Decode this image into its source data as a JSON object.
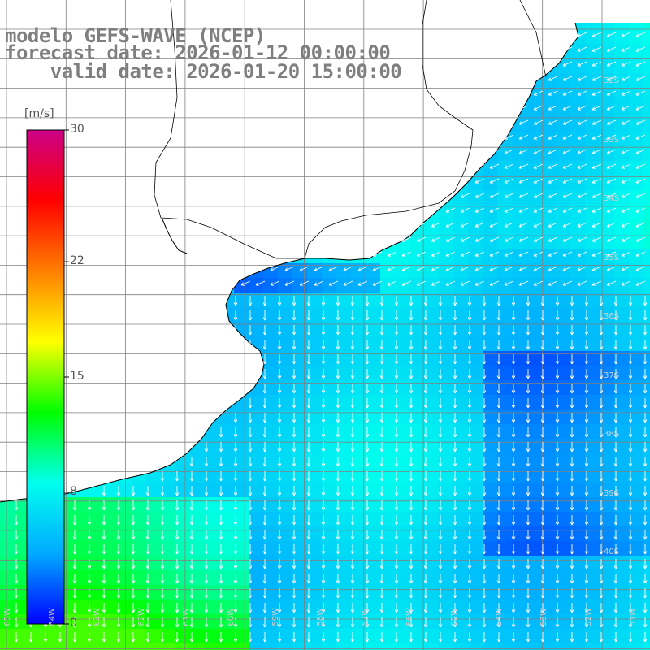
{
  "titles": {
    "model": "modelo GEFS-WAVE (NCEP)",
    "forecast": "forecast date: 2026-01-12 00:00:00",
    "valid": "    valid date: 2026-01-20 15:00:00"
  },
  "colorbar": {
    "unit": "[m/s]",
    "ticks": [
      {
        "value": 30,
        "label": "30"
      },
      {
        "value": 22,
        "label": "22"
      },
      {
        "value": 15,
        "label": "15"
      },
      {
        "value": 8,
        "label": "8"
      },
      {
        "value": 0,
        "label": "0"
      }
    ],
    "colors": [
      "#0000ff",
      "#00aaff",
      "#00ffee",
      "#00ff00",
      "#ffff00",
      "#ff7f00",
      "#ff0000",
      "#cc0088"
    ]
  },
  "map": {
    "lat_labels": [
      "32S",
      "33S",
      "34S",
      "35S",
      "36S",
      "37S",
      "38S",
      "39S",
      "40S"
    ],
    "lon_labels": [
      "65W",
      "64W",
      "63W",
      "62W",
      "61W",
      "60W",
      "59W",
      "58W",
      "57W",
      "56W",
      "55W",
      "54W",
      "53W",
      "52W",
      "51W"
    ],
    "land_color": "#ffffff",
    "grid_color": "#808080",
    "coast_color": "#000000",
    "arrow_color": "#ffffff"
  }
}
